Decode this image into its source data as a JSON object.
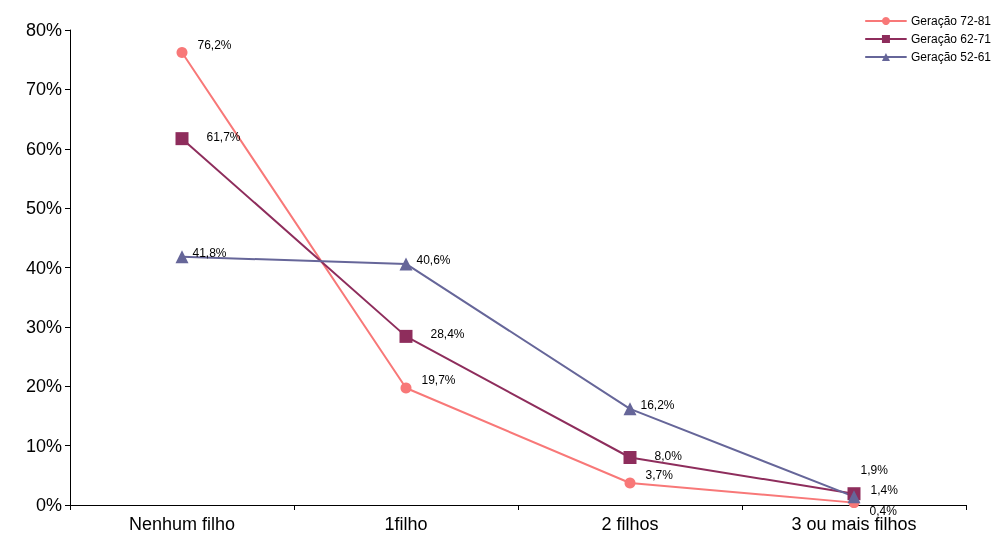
{
  "chart_data": {
    "type": "line",
    "categories": [
      "Nenhum filho",
      "1filho",
      "2 filhos",
      "3 ou mais filhos"
    ],
    "series": [
      {
        "name": "Geração 72-81",
        "color": "#f87878",
        "marker": "circle",
        "values": [
          76.2,
          19.7,
          3.7,
          0.4
        ],
        "value_labels": [
          "76,2%",
          "19,7%",
          "3,7%",
          "0,4%"
        ]
      },
      {
        "name": "Geração 62-71",
        "color": "#8e2d5c",
        "marker": "square",
        "values": [
          61.7,
          28.4,
          8.0,
          1.9
        ],
        "value_labels": [
          "61,7%",
          "28,4%",
          "8,0%",
          "1,9%"
        ]
      },
      {
        "name": "Geração 52-61",
        "color": "#666699",
        "marker": "triangle",
        "values": [
          41.8,
          40.6,
          16.2,
          1.4
        ],
        "value_labels": [
          "41,8%",
          "40,6%",
          "16,2%",
          "1,4%"
        ]
      }
    ],
    "ylim": [
      0,
      80
    ],
    "yticks": [
      {
        "value": 0,
        "label": "0%"
      },
      {
        "value": 10,
        "label": "10%"
      },
      {
        "value": 20,
        "label": "20%"
      },
      {
        "value": 30,
        "label": "30%"
      },
      {
        "value": 40,
        "label": "40%"
      },
      {
        "value": 50,
        "label": "50%"
      },
      {
        "value": 60,
        "label": "60%"
      },
      {
        "value": 70,
        "label": "70%"
      },
      {
        "value": 80,
        "label": "80%"
      }
    ],
    "grid": false,
    "legend": "top right",
    "line_style": "solid"
  }
}
